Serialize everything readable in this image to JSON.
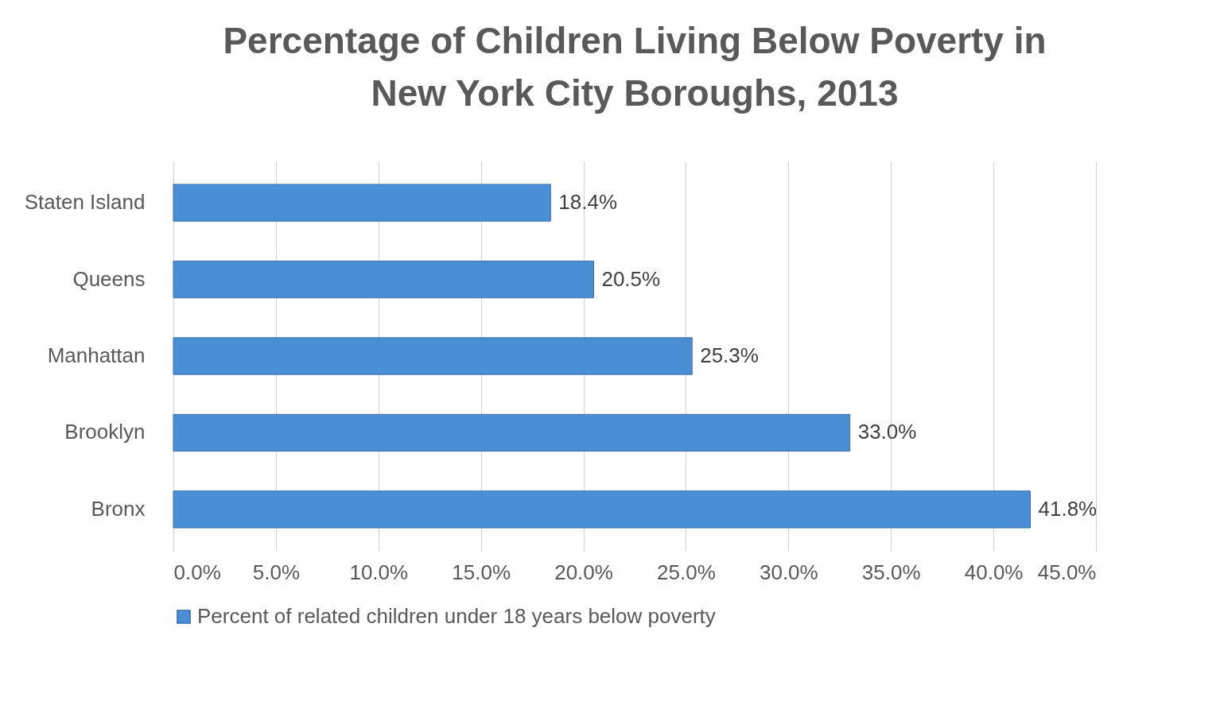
{
  "chart_data": {
    "type": "bar",
    "orientation": "horizontal",
    "title": [
      "Percentage of Children Living Below Poverty in",
      "New York City Boroughs, 2013"
    ],
    "categories": [
      "Staten Island",
      "Queens",
      "Manhattan",
      "Brooklyn",
      "Bronx"
    ],
    "series": [
      {
        "name": "Percent of related children under 18 years below poverty",
        "color": "#4a8fd6",
        "values": [
          18.4,
          20.5,
          25.3,
          33.0,
          41.8
        ],
        "value_labels": [
          "18.4%",
          "20.5%",
          "25.3%",
          "33.0%",
          "41.8%"
        ]
      }
    ],
    "xlim": [
      0,
      45
    ],
    "xticks": [
      {
        "value": 0,
        "label": "0.0%"
      },
      {
        "value": 5,
        "label": "5.0%"
      },
      {
        "value": 10,
        "label": "10.0%"
      },
      {
        "value": 15,
        "label": "15.0%"
      },
      {
        "value": 20,
        "label": "20.0%"
      },
      {
        "value": 25,
        "label": "25.0%"
      },
      {
        "value": 30,
        "label": "30.0%"
      },
      {
        "value": 35,
        "label": "35.0%"
      },
      {
        "value": 40,
        "label": "40.0%"
      },
      {
        "value": 45,
        "label": "45.0%"
      }
    ],
    "grid": "x",
    "legend": "bottom"
  }
}
